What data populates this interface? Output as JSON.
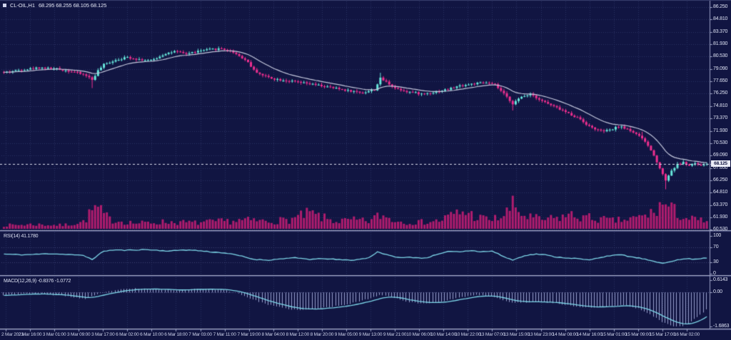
{
  "window": {
    "symbol_label": "CL-OIL,H1",
    "ohlc": "68.295 68.255 68.105 68.125"
  },
  "colors": {
    "background": "#111542",
    "grid": "#2b3062",
    "bull": "#67e8dc",
    "bear": "#ef2f8f",
    "ma_line": "#c3c7dc",
    "indicator_line": "#7ed7e9",
    "macd_histogram": "#99a2cf",
    "volume": "#b01c6e",
    "separator": "#a6abc8",
    "separator_shadow": "#42477a",
    "axis_line": "#9aa0c4",
    "price_line": "#dcdfee",
    "tag_background": "#e9ebf5",
    "tag_text": "#10133d",
    "axis_text": "#dfe3f4"
  },
  "main_panel": {
    "price_ticks": [
      "86.250",
      "84.810",
      "83.370",
      "81.930",
      "80.530",
      "79.090",
      "77.650",
      "76.250",
      "74.810",
      "73.370",
      "71.930",
      "70.530",
      "69.090",
      "67.650",
      "66.250",
      "64.810",
      "63.370",
      "61.930",
      "60.530"
    ]
  },
  "rsi_panel": {
    "label": "RSI(14) 41.1780",
    "ticks": [
      "100",
      "70",
      "30",
      "0"
    ],
    "levels": [
      70,
      30
    ]
  },
  "macd_panel": {
    "label": "MACD(12,26,9) -0.8376 -1.0772",
    "ticks": [
      "0.6143",
      "0.00",
      "-1.6863"
    ]
  },
  "price_tag": {
    "label": "68.125"
  },
  "time_axis": {
    "labels": [
      "2 Mar 2023",
      "2 Mar 16:00",
      "3 Mar 01:00",
      "3 Mar 09:00",
      "3 Mar 17:00",
      "6 Mar 02:00",
      "6 Mar 10:00",
      "6 Mar 18:00",
      "7 Mar 03:00",
      "7 Mar 11:00",
      "7 Mar 19:00",
      "8 Mar 04:00",
      "8 Mar 12:00",
      "8 Mar 20:00",
      "9 Mar 05:00",
      "9 Mar 13:00",
      "9 Mar 21:00",
      "10 Mar 06:00",
      "10 Mar 14:00",
      "10 Mar 22:00",
      "13 Mar 07:00",
      "13 Mar 15:00",
      "13 Mar 23:00",
      "14 Mar 08:00",
      "14 Mar 16:00",
      "15 Mar 01:00",
      "15 Mar 09:00",
      "15 Mar 17:00",
      "16 Mar 02:00"
    ]
  },
  "chart_data": {
    "type": "candlestick",
    "symbol": "CL-OIL",
    "timeframe": "H1",
    "title": "CL-OIL,H1 68.295 68.255 68.105 68.125",
    "bar_count": 240,
    "current_price": 68.125,
    "price_axis_range": [
      60.53,
      86.25
    ],
    "overlays": [
      "moving-average",
      "volume",
      "current-price-line"
    ],
    "close_waypoints": [
      [
        0,
        78.7
      ],
      [
        6,
        79.0
      ],
      [
        12,
        79.25
      ],
      [
        18,
        79.1
      ],
      [
        24,
        78.75
      ],
      [
        28,
        78.35
      ],
      [
        30,
        77.85
      ],
      [
        32,
        78.9
      ],
      [
        34,
        79.6
      ],
      [
        38,
        80.15
      ],
      [
        42,
        80.45
      ],
      [
        46,
        80.2
      ],
      [
        50,
        80.05
      ],
      [
        55,
        80.9
      ],
      [
        58,
        81.1
      ],
      [
        62,
        80.85
      ],
      [
        66,
        81.15
      ],
      [
        70,
        81.35
      ],
      [
        74,
        81.45
      ],
      [
        78,
        81.05
      ],
      [
        81,
        80.4
      ],
      [
        83,
        79.9
      ],
      [
        85,
        78.95
      ],
      [
        88,
        78.35
      ],
      [
        92,
        77.95
      ],
      [
        97,
        77.7
      ],
      [
        102,
        77.45
      ],
      [
        107,
        77.2
      ],
      [
        112,
        76.9
      ],
      [
        117,
        76.6
      ],
      [
        122,
        76.35
      ],
      [
        126,
        76.7
      ],
      [
        128,
        78.0
      ],
      [
        130,
        77.6
      ],
      [
        133,
        76.9
      ],
      [
        137,
        76.5
      ],
      [
        142,
        76.2
      ],
      [
        147,
        76.45
      ],
      [
        151,
        76.75
      ],
      [
        155,
        77.15
      ],
      [
        160,
        77.4
      ],
      [
        164,
        77.5
      ],
      [
        167,
        77.25
      ],
      [
        170,
        76.2
      ],
      [
        173,
        75.1
      ],
      [
        176,
        75.85
      ],
      [
        179,
        76.25
      ],
      [
        182,
        75.6
      ],
      [
        186,
        74.9
      ],
      [
        189,
        74.45
      ],
      [
        192,
        73.95
      ],
      [
        196,
        73.3
      ],
      [
        199,
        72.45
      ],
      [
        203,
        71.9
      ],
      [
        206,
        72.0
      ],
      [
        209,
        72.45
      ],
      [
        212,
        72.15
      ],
      [
        215,
        71.6
      ],
      [
        218,
        70.7
      ],
      [
        220,
        69.7
      ],
      [
        222,
        68.4
      ],
      [
        224,
        66.9
      ],
      [
        225,
        66.25
      ],
      [
        227,
        67.35
      ],
      [
        229,
        68.05
      ],
      [
        231,
        68.3
      ],
      [
        233,
        67.9
      ],
      [
        235,
        68.2
      ],
      [
        237,
        67.85
      ],
      [
        239,
        68.3
      ],
      [
        240,
        68.125
      ]
    ],
    "wick_events": [
      {
        "index": 30,
        "low_offset": 0.85
      },
      {
        "index": 128,
        "high_offset": 0.4
      },
      {
        "index": 173,
        "low_offset": 0.5
      },
      {
        "index": 217,
        "high_offset": 0.3
      },
      {
        "index": 225,
        "low_offset": 0.85
      }
    ],
    "volume_waypoints": [
      [
        0,
        0.14
      ],
      [
        10,
        0.18
      ],
      [
        20,
        0.14
      ],
      [
        27,
        0.28
      ],
      [
        31,
        0.85
      ],
      [
        36,
        0.38
      ],
      [
        45,
        0.22
      ],
      [
        55,
        0.28
      ],
      [
        65,
        0.24
      ],
      [
        75,
        0.3
      ],
      [
        82,
        0.34
      ],
      [
        90,
        0.3
      ],
      [
        97,
        0.36
      ],
      [
        101,
        0.5
      ],
      [
        104,
        0.62
      ],
      [
        108,
        0.45
      ],
      [
        113,
        0.3
      ],
      [
        119,
        0.34
      ],
      [
        124,
        0.3
      ],
      [
        128,
        0.55
      ],
      [
        134,
        0.3
      ],
      [
        141,
        0.26
      ],
      [
        148,
        0.32
      ],
      [
        153,
        0.58
      ],
      [
        157,
        0.68
      ],
      [
        161,
        0.45
      ],
      [
        166,
        0.36
      ],
      [
        170,
        0.52
      ],
      [
        173,
        0.92
      ],
      [
        177,
        0.5
      ],
      [
        183,
        0.36
      ],
      [
        188,
        0.42
      ],
      [
        192,
        0.55
      ],
      [
        197,
        0.46
      ],
      [
        202,
        0.4
      ],
      [
        207,
        0.32
      ],
      [
        212,
        0.36
      ],
      [
        217,
        0.48
      ],
      [
        221,
        0.65
      ],
      [
        224,
        1.0
      ],
      [
        228,
        0.7
      ],
      [
        232,
        0.42
      ],
      [
        236,
        0.34
      ],
      [
        240,
        0.3
      ]
    ],
    "rsi": {
      "period": 14,
      "last_value": 41.178,
      "waypoints": [
        [
          0,
          52
        ],
        [
          7,
          50
        ],
        [
          15,
          53
        ],
        [
          22,
          51
        ],
        [
          27,
          48
        ],
        [
          30,
          38
        ],
        [
          34,
          60
        ],
        [
          38,
          63
        ],
        [
          41,
          62
        ],
        [
          48,
          64
        ],
        [
          56,
          60
        ],
        [
          61,
          63
        ],
        [
          65,
          62
        ],
        [
          70,
          58
        ],
        [
          75,
          55
        ],
        [
          80,
          48
        ],
        [
          85,
          38
        ],
        [
          90,
          36
        ],
        [
          95,
          40
        ],
        [
          99,
          42
        ],
        [
          104,
          38
        ],
        [
          109,
          40
        ],
        [
          114,
          37
        ],
        [
          119,
          36
        ],
        [
          124,
          42
        ],
        [
          127,
          58
        ],
        [
          131,
          48
        ],
        [
          135,
          42
        ],
        [
          138,
          44
        ],
        [
          143,
          41
        ],
        [
          148,
          52
        ],
        [
          152,
          60
        ],
        [
          155,
          58
        ],
        [
          159,
          62
        ],
        [
          162,
          58
        ],
        [
          166,
          60
        ],
        [
          170,
          45
        ],
        [
          173,
          36
        ],
        [
          177,
          48
        ],
        [
          181,
          52
        ],
        [
          184,
          50
        ],
        [
          188,
          44
        ],
        [
          191,
          42
        ],
        [
          195,
          40
        ],
        [
          199,
          36
        ],
        [
          202,
          42
        ],
        [
          206,
          48
        ],
        [
          210,
          50
        ],
        [
          213,
          45
        ],
        [
          217,
          40
        ],
        [
          221,
          32
        ],
        [
          224,
          28
        ],
        [
          228,
          35
        ],
        [
          232,
          40
        ],
        [
          235,
          38
        ],
        [
          238,
          42
        ],
        [
          240,
          41.2
        ]
      ]
    },
    "macd": {
      "params": "12,26,9",
      "last_main": -0.8376,
      "last_signal": -1.0772,
      "axis_max": 0.6143,
      "axis_min": -1.6863,
      "waypoints": [
        [
          0,
          -0.12
        ],
        [
          10,
          -0.05
        ],
        [
          20,
          -0.15
        ],
        [
          28,
          -0.32
        ],
        [
          33,
          -0.05
        ],
        [
          38,
          0.12
        ],
        [
          45,
          0.2
        ],
        [
          52,
          0.16
        ],
        [
          58,
          0.12
        ],
        [
          64,
          0.16
        ],
        [
          70,
          0.18
        ],
        [
          76,
          0.1
        ],
        [
          80,
          -0.05
        ],
        [
          85,
          -0.35
        ],
        [
          90,
          -0.6
        ],
        [
          96,
          -0.8
        ],
        [
          101,
          -0.88
        ],
        [
          106,
          -0.82
        ],
        [
          112,
          -0.7
        ],
        [
          118,
          -0.55
        ],
        [
          124,
          -0.32
        ],
        [
          128,
          -0.12
        ],
        [
          132,
          -0.2
        ],
        [
          137,
          -0.45
        ],
        [
          142,
          -0.55
        ],
        [
          147,
          -0.5
        ],
        [
          152,
          -0.35
        ],
        [
          157,
          -0.2
        ],
        [
          162,
          -0.12
        ],
        [
          167,
          -0.22
        ],
        [
          171,
          -0.45
        ],
        [
          176,
          -0.52
        ],
        [
          181,
          -0.45
        ],
        [
          186,
          -0.5
        ],
        [
          191,
          -0.6
        ],
        [
          196,
          -0.72
        ],
        [
          201,
          -0.75
        ],
        [
          206,
          -0.68
        ],
        [
          211,
          -0.62
        ],
        [
          216,
          -0.8
        ],
        [
          220,
          -1.1
        ],
        [
          224,
          -1.45
        ],
        [
          228,
          -1.66
        ],
        [
          231,
          -1.686
        ],
        [
          234,
          -1.45
        ],
        [
          237,
          -1.1
        ],
        [
          240,
          -0.8376
        ]
      ]
    }
  }
}
